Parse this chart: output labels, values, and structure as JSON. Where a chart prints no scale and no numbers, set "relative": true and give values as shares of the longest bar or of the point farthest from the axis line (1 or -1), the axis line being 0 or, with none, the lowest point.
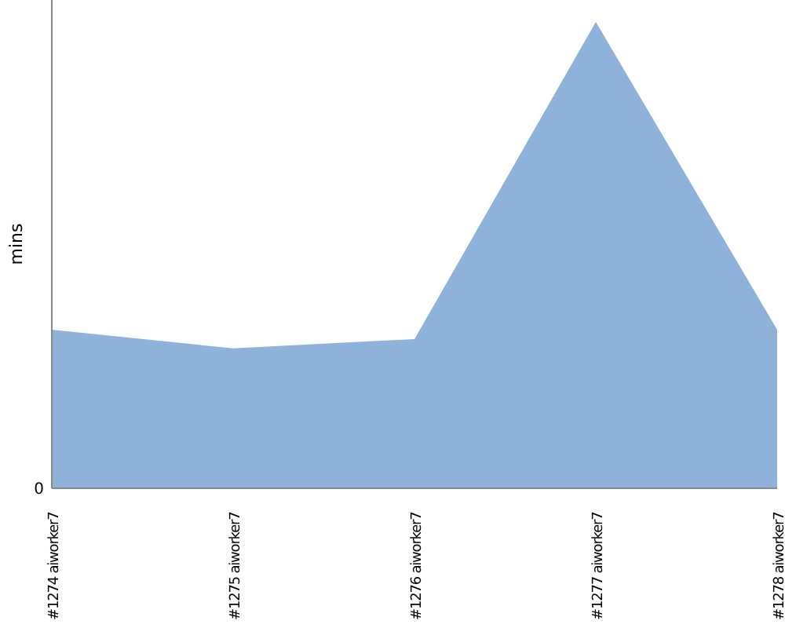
{
  "chart_data": {
    "type": "area",
    "ylabel": "mins",
    "relative": true,
    "categories": [
      "#1274 aiworker7",
      "#1275 aiworker7",
      "#1276 aiworker7",
      "#1277 aiworker7",
      "#1278 aiworker7"
    ],
    "series": [
      {
        "color": "#8fb2da",
        "values": [
          0.34,
          0.3,
          0.32,
          1,
          0.34
        ]
      }
    ],
    "annotations": [
      "0"
    ]
  }
}
